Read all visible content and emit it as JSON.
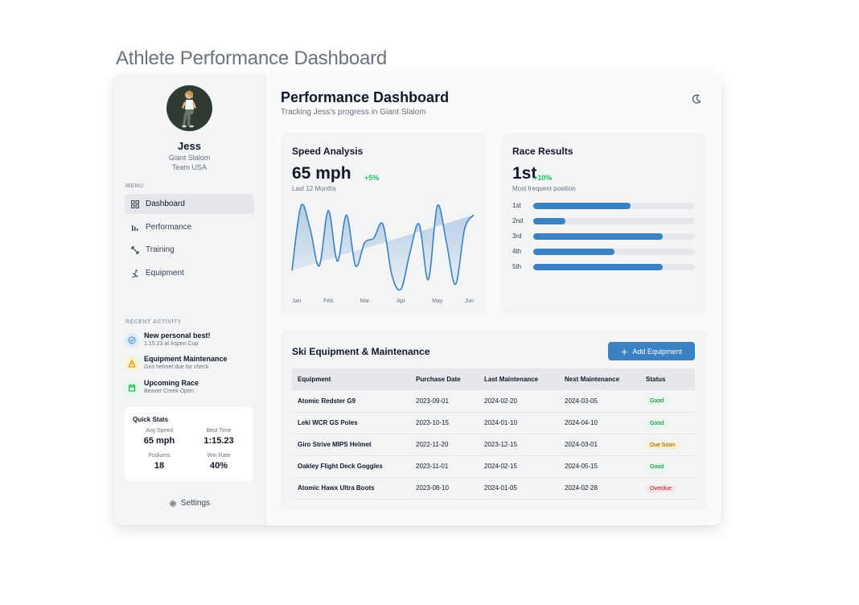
{
  "page_title": "Athlete Performance Dashboard",
  "colors": {
    "accent": "#3b82c4",
    "positive": "#22c55e",
    "good": "#166534",
    "soon": "#92400e",
    "overdue": "#991b1b"
  },
  "profile": {
    "name": "Jess",
    "discipline": "Giant Slalom",
    "team": "Team USA"
  },
  "menu": {
    "label": "MENU",
    "items": [
      {
        "label": "Dashboard",
        "icon": "grid-icon",
        "active": true
      },
      {
        "label": "Performance",
        "icon": "bar-chart-icon"
      },
      {
        "label": "Training",
        "icon": "arrows-icon"
      },
      {
        "label": "Equipment",
        "icon": "skier-icon"
      }
    ]
  },
  "recent_activity": {
    "label": "RECENT ACTIVITY",
    "items": [
      {
        "title": "New personal best!",
        "sub": "1:15.23 at Aspen Cup",
        "icon": "check-circle-icon"
      },
      {
        "title": "Equipment Maintenance",
        "sub": "Giro helmet due for check",
        "icon": "warning-icon"
      },
      {
        "title": "Upcoming Race",
        "sub": "Beaver Creek Open",
        "icon": "calendar-icon"
      }
    ]
  },
  "quick_stats": {
    "title": "Quick Stats",
    "items": [
      {
        "label": "Avg Speed",
        "value": "65 mph"
      },
      {
        "label": "Best Time",
        "value": "1:15.23"
      },
      {
        "label": "Podiums",
        "value": "18"
      },
      {
        "label": "Win Rate",
        "value": "40%"
      }
    ]
  },
  "settings_label": "Settings",
  "header": {
    "title": "Performance Dashboard",
    "subtitle": "Tracking Jess's progress in Giant Slalom"
  },
  "speed": {
    "title": "Speed Analysis",
    "value": "65 mph",
    "delta": "+5%",
    "sub": "Last 12 Months"
  },
  "race": {
    "title": "Race Results",
    "value": "1st",
    "delta": "+10%",
    "sub": "Most frequent position",
    "ranks": [
      {
        "label": "1st",
        "level": 0.6
      },
      {
        "label": "2nd",
        "level": 0.2
      },
      {
        "label": "3rd",
        "level": 0.8
      },
      {
        "label": "4th",
        "level": 0.5
      },
      {
        "label": "5th",
        "level": 0.8
      }
    ]
  },
  "equipment": {
    "title": "Ski Equipment & Maintenance",
    "add_label": "Add Equipment",
    "columns": [
      "Equipment",
      "Purchase Date",
      "Last Maintenance",
      "Next Maintenance",
      "Status"
    ],
    "rows": [
      {
        "name": "Atomic Redster G9",
        "purchase": "2023-09-01",
        "last": "2024-02-20",
        "next": "2024-03-05",
        "status": "Good",
        "status_kind": "good"
      },
      {
        "name": "Leki WCR GS Poles",
        "purchase": "2023-10-15",
        "last": "2024-01-10",
        "next": "2024-04-10",
        "status": "Good",
        "status_kind": "good"
      },
      {
        "name": "Giro Strive MIPS Helmet",
        "purchase": "2022-11-20",
        "last": "2023-12-15",
        "next": "2024-03-01",
        "status": "Due Soon",
        "status_kind": "soon"
      },
      {
        "name": "Oakley Flight Deck Goggles",
        "purchase": "2023-11-01",
        "last": "2024-02-15",
        "next": "2024-05-15",
        "status": "Good",
        "status_kind": "good"
      },
      {
        "name": "Atomic Hawx Ultra Boots",
        "purchase": "2023-08-10",
        "last": "2024-01-05",
        "next": "2024-02-28",
        "status": "Overdue",
        "status_kind": "over"
      }
    ]
  },
  "chart_data": {
    "type": "area",
    "x_tick_labels": [
      "Jan",
      "Feb",
      "Mar",
      "Apr",
      "May",
      "Jun"
    ],
    "x": [
      0,
      0.25,
      0.5,
      0.75,
      1,
      1.25,
      1.5,
      1.75,
      2,
      2.25,
      2.5,
      2.75,
      3,
      3.25,
      3.5,
      3.75,
      4,
      4.25,
      4.5,
      4.75,
      5
    ],
    "series": [
      {
        "values": [
          0.25,
          0.95,
          0.7,
          0.3,
          0.9,
          0.35,
          0.85,
          0.3,
          0.55,
          0.6,
          0.75,
          0.2,
          0.05,
          0.45,
          0.75,
          0.15,
          0.95,
          0.55,
          0.1,
          0.7,
          0.85
        ]
      }
    ],
    "trend": {
      "start": 0.25,
      "end": 0.85
    },
    "ylim": [
      0,
      1
    ],
    "grid": false
  }
}
